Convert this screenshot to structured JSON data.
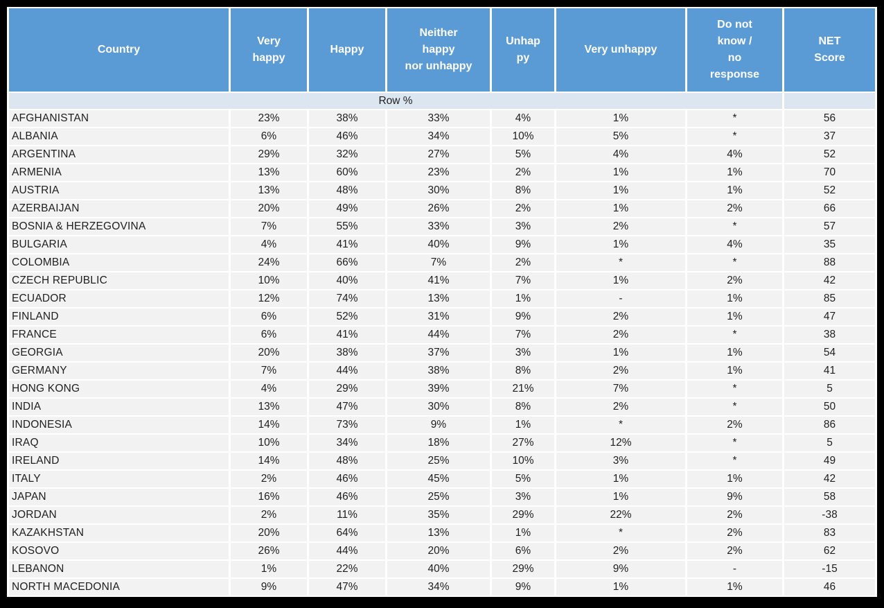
{
  "colors": {
    "page_bg": "#000000",
    "header_bg": "#5B9BD5",
    "header_text": "#FFFFFF",
    "row_percent_bg": "#DCE6F1",
    "cell_bg": "#F2F2F2",
    "grid_gap": "#FFFFFF",
    "body_text": "#1E1E1E"
  },
  "table": {
    "row_basis_label": "Row %",
    "columns": [
      {
        "id": "country",
        "label": "Country"
      },
      {
        "id": "very-happy",
        "label": "Very\nhappy"
      },
      {
        "id": "happy",
        "label": "Happy"
      },
      {
        "id": "neither-happy-nor-unhappy",
        "label": "Neither\nhappy\nnor unhappy"
      },
      {
        "id": "unhappy",
        "label": "Unhap\npy"
      },
      {
        "id": "very-unhappy",
        "label": "Very unhappy"
      },
      {
        "id": "dont-know-no-response",
        "label": "Do not\nknow /\nno\nresponse"
      },
      {
        "id": "net-score",
        "label": "NET\nScore"
      }
    ],
    "rows": [
      [
        "AFGHANISTAN",
        "23%",
        "38%",
        "33%",
        "4%",
        "1%",
        "*",
        "56"
      ],
      [
        "ALBANIA",
        "6%",
        "46%",
        "34%",
        "10%",
        "5%",
        "*",
        "37"
      ],
      [
        "ARGENTINA",
        "29%",
        "32%",
        "27%",
        "5%",
        "4%",
        "4%",
        "52"
      ],
      [
        "ARMENIA",
        "13%",
        "60%",
        "23%",
        "2%",
        "1%",
        "1%",
        "70"
      ],
      [
        "AUSTRIA",
        "13%",
        "48%",
        "30%",
        "8%",
        "1%",
        "1%",
        "52"
      ],
      [
        "AZERBAIJAN",
        "20%",
        "49%",
        "26%",
        "2%",
        "1%",
        "2%",
        "66"
      ],
      [
        "BOSNIA & HERZEGOVINA",
        "7%",
        "55%",
        "33%",
        "3%",
        "2%",
        "*",
        "57"
      ],
      [
        "BULGARIA",
        "4%",
        "41%",
        "40%",
        "9%",
        "1%",
        "4%",
        "35"
      ],
      [
        "COLOMBIA",
        "24%",
        "66%",
        "7%",
        "2%",
        "*",
        "*",
        "88"
      ],
      [
        "CZECH REPUBLIC",
        "10%",
        "40%",
        "41%",
        "7%",
        "1%",
        "2%",
        "42"
      ],
      [
        "ECUADOR",
        "12%",
        "74%",
        "13%",
        "1%",
        "-",
        "1%",
        "85"
      ],
      [
        "FINLAND",
        "6%",
        "52%",
        "31%",
        "9%",
        "2%",
        "1%",
        "47"
      ],
      [
        "FRANCE",
        "6%",
        "41%",
        "44%",
        "7%",
        "2%",
        "*",
        "38"
      ],
      [
        "GEORGIA",
        "20%",
        "38%",
        "37%",
        "3%",
        "1%",
        "1%",
        "54"
      ],
      [
        "GERMANY",
        "7%",
        "44%",
        "38%",
        "8%",
        "2%",
        "1%",
        "41"
      ],
      [
        "HONG KONG",
        "4%",
        "29%",
        "39%",
        "21%",
        "7%",
        "*",
        "5"
      ],
      [
        "INDIA",
        "13%",
        "47%",
        "30%",
        "8%",
        "2%",
        "*",
        "50"
      ],
      [
        "INDONESIA",
        "14%",
        "73%",
        "9%",
        "1%",
        "*",
        "2%",
        "86"
      ],
      [
        "IRAQ",
        "10%",
        "34%",
        "18%",
        "27%",
        "12%",
        "*",
        "5"
      ],
      [
        "IRELAND",
        "14%",
        "48%",
        "25%",
        "10%",
        "3%",
        "*",
        "49"
      ],
      [
        "ITALY",
        "2%",
        "46%",
        "45%",
        "5%",
        "1%",
        "1%",
        "42"
      ],
      [
        "JAPAN",
        "16%",
        "46%",
        "25%",
        "3%",
        "1%",
        "9%",
        "58"
      ],
      [
        "JORDAN",
        "2%",
        "11%",
        "35%",
        "29%",
        "22%",
        "2%",
        "-38"
      ],
      [
        "KAZAKHSTAN",
        "20%",
        "64%",
        "13%",
        "1%",
        "*",
        "2%",
        "83"
      ],
      [
        "KOSOVO",
        "26%",
        "44%",
        "20%",
        "6%",
        "2%",
        "2%",
        "62"
      ],
      [
        "LEBANON",
        "1%",
        "22%",
        "40%",
        "29%",
        "9%",
        "-",
        "-15"
      ],
      [
        "NORTH MACEDONIA",
        "9%",
        "47%",
        "34%",
        "9%",
        "1%",
        "1%",
        "46"
      ]
    ]
  }
}
